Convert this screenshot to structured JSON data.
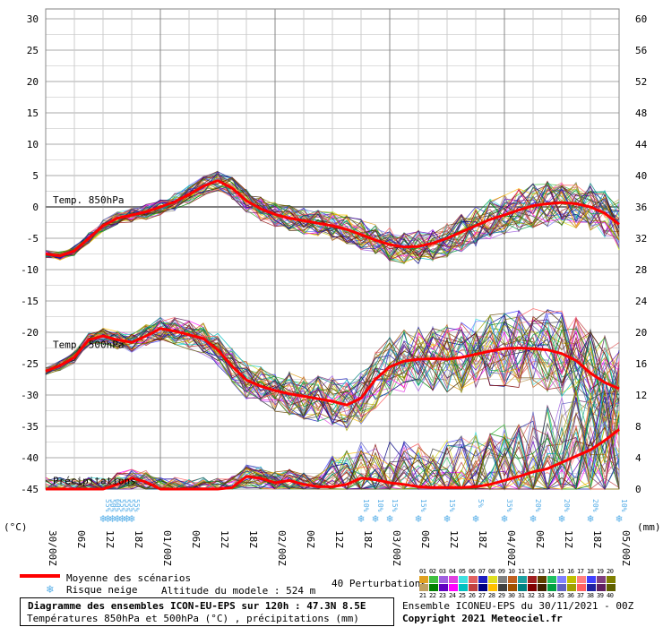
{
  "chart_data": {
    "type": "line",
    "title": "Diagramme des ensembles ICON-EU-EPS sur 120h : 47.3N 8.5E",
    "subtitle": "Températures 850hPa et 500hPa (°C) , précipitations (mm)",
    "left_unit": "(°C)",
    "right_unit": "(mm)",
    "ylim_left": [
      -45,
      30
    ],
    "ylim_right": [
      0,
      60
    ],
    "yticks_left": [
      "30",
      "25",
      "20",
      "15",
      "10",
      "5",
      "0",
      "-5",
      "-10",
      "-15",
      "-20",
      "-25",
      "-30",
      "-35",
      "-40",
      "-45"
    ],
    "yticks_right": [
      "60",
      "56",
      "52",
      "48",
      "44",
      "40",
      "36",
      "32",
      "28",
      "24",
      "20",
      "16",
      "12",
      "8",
      "4",
      "0"
    ],
    "x_hours": [
      0,
      6,
      12,
      18,
      24,
      30,
      36,
      42,
      48,
      54,
      60,
      66,
      72,
      78,
      84,
      90,
      96,
      102,
      108,
      114,
      120
    ],
    "x_labels": [
      "30/00Z",
      "06Z",
      "12Z",
      "18Z",
      "01/00Z",
      "06Z",
      "12Z",
      "18Z",
      "02/00Z",
      "06Z",
      "12Z",
      "18Z",
      "03/00Z",
      "06Z",
      "12Z",
      "18Z",
      "04/00Z",
      "06Z",
      "12Z",
      "18Z",
      "05/00Z"
    ],
    "series_labels": {
      "t850": "Temp. 850hPa",
      "t500": "Temp. 500hPa",
      "precip": "Précipitations"
    },
    "series": [
      {
        "name": "Moyenne des scénarios",
        "role": "t850_mean",
        "x": [
          0,
          3,
          6,
          9,
          12,
          15,
          18,
          21,
          24,
          27,
          30,
          33,
          36,
          39,
          42,
          45,
          48,
          51,
          54,
          57,
          60,
          63,
          66,
          69,
          72,
          75,
          78,
          81,
          84,
          87,
          90,
          93,
          96,
          99,
          102,
          105,
          108,
          111,
          114,
          117,
          120
        ],
        "values": [
          -7.5,
          -7.8,
          -7,
          -5,
          -3,
          -1.8,
          -1.3,
          -0.8,
          0,
          0.8,
          2,
          3.3,
          4.2,
          3,
          1,
          -0.3,
          -1.2,
          -1.8,
          -2.2,
          -2.6,
          -3,
          -3.6,
          -4.4,
          -5.3,
          -6,
          -6.4,
          -6.3,
          -5.8,
          -5,
          -4,
          -3,
          -2,
          -1.3,
          -0.5,
          0.2,
          0.5,
          0.7,
          0.5,
          0,
          -1,
          -2.8
        ]
      },
      {
        "name": "Moyenne des scénarios",
        "role": "t500_mean",
        "x": [
          0,
          3,
          6,
          9,
          12,
          15,
          18,
          21,
          24,
          27,
          30,
          33,
          36,
          39,
          42,
          45,
          48,
          51,
          54,
          57,
          60,
          63,
          66,
          69,
          72,
          75,
          78,
          81,
          84,
          87,
          90,
          93,
          96,
          99,
          102,
          105,
          108,
          111,
          114,
          117,
          120
        ],
        "values": [
          -26.2,
          -25.3,
          -24,
          -21.2,
          -20.6,
          -21.2,
          -21.6,
          -20.6,
          -19.4,
          -19.8,
          -20.4,
          -21,
          -22.8,
          -25.4,
          -27.6,
          -28.6,
          -29.3,
          -29.8,
          -30.2,
          -30.6,
          -31,
          -31.6,
          -30.5,
          -27.5,
          -25.5,
          -24.6,
          -24.3,
          -24.2,
          -24.3,
          -24,
          -23.5,
          -23,
          -22.6,
          -22.5,
          -22.6,
          -22.8,
          -23.4,
          -24.5,
          -26.5,
          -28,
          -29
        ]
      },
      {
        "name": "Moyenne des scénarios",
        "role": "precip_mean",
        "x": [
          0,
          3,
          6,
          9,
          12,
          15,
          18,
          21,
          24,
          27,
          30,
          33,
          36,
          39,
          42,
          45,
          48,
          51,
          54,
          57,
          60,
          63,
          66,
          69,
          72,
          75,
          78,
          81,
          84,
          87,
          90,
          93,
          96,
          99,
          102,
          105,
          108,
          111,
          114,
          117,
          120
        ],
        "values": [
          0,
          0,
          0,
          0,
          0,
          0.6,
          1.4,
          0.9,
          0,
          0,
          0,
          0,
          0,
          0.2,
          1.6,
          1.4,
          0.8,
          1.1,
          0.6,
          0.3,
          0.3,
          0.6,
          1.4,
          1.2,
          0.8,
          0.6,
          0.3,
          0.2,
          0.2,
          0.2,
          0.3,
          0.6,
          1.1,
          1.6,
          2.2,
          2.6,
          3.4,
          4.2,
          5,
          6.2,
          7.6
        ]
      }
    ],
    "perturbations_count": 40,
    "perturbations_label": "40 Perturbations",
    "member_ids_row1": [
      "01",
      "02",
      "03",
      "04",
      "05",
      "06",
      "07",
      "08",
      "09",
      "10",
      "11",
      "12",
      "13",
      "14",
      "15",
      "16",
      "17",
      "18",
      "19",
      "20"
    ],
    "member_ids_row2": [
      "21",
      "22",
      "23",
      "24",
      "25",
      "26",
      "27",
      "28",
      "29",
      "30",
      "31",
      "32",
      "33",
      "34",
      "35",
      "36",
      "37",
      "38",
      "39",
      "40"
    ],
    "member_colors_row1": [
      "#e0a020",
      "#40c040",
      "#a060e0",
      "#e040e0",
      "#40e0e0",
      "#e06060",
      "#2020c0",
      "#e0e020",
      "#808080",
      "#c06020",
      "#20a0a0",
      "#a02020",
      "#604000",
      "#20c060",
      "#8080ff",
      "#c0c000",
      "#ff8080",
      "#4040ff",
      "#804080",
      "#808000"
    ],
    "member_colors_row2": [
      "#c0a060",
      "#008000",
      "#6000c0",
      "#ff00ff",
      "#00c0c0",
      "#c04040",
      "#000080",
      "#ffc000",
      "#404040",
      "#a05000",
      "#008080",
      "#800000",
      "#402000",
      "#00a040",
      "#6060c0",
      "#a0a000",
      "#ff6060",
      "#2020a0",
      "#602060",
      "#606000"
    ],
    "snow_risk": [
      {
        "hour": 12,
        "label": "55%"
      },
      {
        "hour": 13,
        "label": "50%"
      },
      {
        "hour": 14,
        "label": "60%"
      },
      {
        "hour": 15,
        "label": "55%"
      },
      {
        "hour": 16,
        "label": "55%"
      },
      {
        "hour": 17,
        "label": "55%"
      },
      {
        "hour": 18,
        "label": "55%"
      },
      {
        "hour": 66,
        "label": "10%"
      },
      {
        "hour": 69,
        "label": "10%"
      },
      {
        "hour": 72,
        "label": "15%"
      },
      {
        "hour": 78,
        "label": "15%"
      },
      {
        "hour": 84,
        "label": "15%"
      },
      {
        "hour": 90,
        "label": "5%"
      },
      {
        "hour": 96,
        "label": "35%"
      },
      {
        "hour": 102,
        "label": "20%"
      },
      {
        "hour": 108,
        "label": "20%"
      },
      {
        "hour": 114,
        "label": "20%"
      },
      {
        "hour": 120,
        "label": "10%"
      }
    ],
    "legend": {
      "mean_label": "Moyenne des scénarios",
      "snow_label": "Risque neige",
      "altitude": "Altitude du modele : 524 m"
    },
    "footer": {
      "run": "Ensemble ICONEU-EPS du 30/11/2021 - 00Z",
      "copyright": "Copyright 2021 Meteociel.fr"
    },
    "colors": {
      "mean": "#ff0000",
      "grid": "#aaaaaa",
      "snow": "#5ab0e8",
      "zero_line": "#808080"
    },
    "grid": true
  }
}
